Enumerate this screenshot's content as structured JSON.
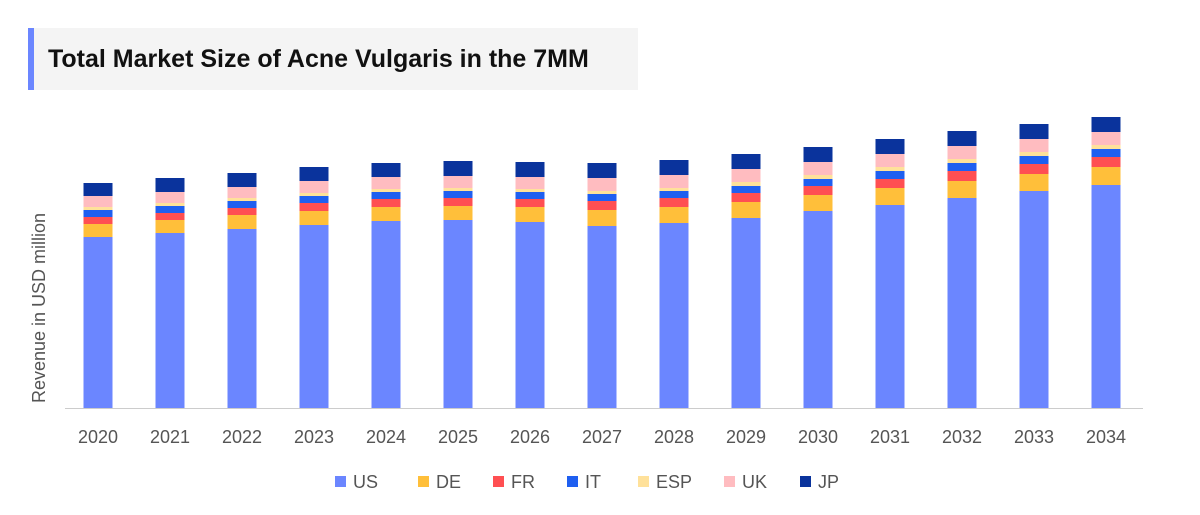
{
  "chart_data": {
    "type": "bar",
    "stacked": true,
    "title": "Total Market Size of Acne Vulgaris in the 7MM",
    "xlabel": "",
    "ylabel": "Revenue in USD million",
    "ylim": [
      0,
      300
    ],
    "grid": false,
    "legend_position": "bottom",
    "categories": [
      "2020",
      "2021",
      "2022",
      "2023",
      "2024",
      "2025",
      "2026",
      "2027",
      "2028",
      "2029",
      "2030",
      "2031",
      "2032",
      "2033",
      "2034"
    ],
    "series": [
      {
        "name": "US",
        "color": "#6b86ff",
        "values": [
          171,
          175,
          179,
          183,
          187,
          188,
          186,
          182,
          185,
          190,
          197,
          203,
          210,
          217,
          223
        ]
      },
      {
        "name": "DE",
        "color": "#ffbf3a",
        "values": [
          13,
          13,
          14,
          14,
          14,
          14,
          15,
          16,
          16,
          16,
          16,
          17,
          17,
          17,
          18
        ]
      },
      {
        "name": "FR",
        "color": "#ff4f52",
        "values": [
          7,
          7,
          7,
          8,
          8,
          8,
          8,
          9,
          9,
          9,
          9,
          9,
          10,
          10,
          10
        ]
      },
      {
        "name": "IT",
        "color": "#1f5ff0",
        "values": [
          7,
          7,
          7,
          7,
          7,
          7,
          7,
          7,
          7,
          7,
          7,
          8,
          8,
          8,
          8
        ]
      },
      {
        "name": "ESP",
        "color": "#ffe19a",
        "values": [
          3,
          3,
          3,
          3,
          3,
          3,
          3,
          3,
          3,
          4,
          4,
          4,
          4,
          4,
          4
        ]
      },
      {
        "name": "UK",
        "color": "#ffbcc0",
        "values": [
          11,
          11,
          11,
          12,
          12,
          12,
          12,
          13,
          13,
          13,
          13,
          13,
          13,
          13,
          13
        ]
      },
      {
        "name": "JP",
        "color": "#0a339c",
        "values": [
          13,
          14,
          14,
          14,
          14,
          15,
          15,
          15,
          15,
          15,
          15,
          15,
          15,
          15,
          15
        ]
      }
    ]
  }
}
